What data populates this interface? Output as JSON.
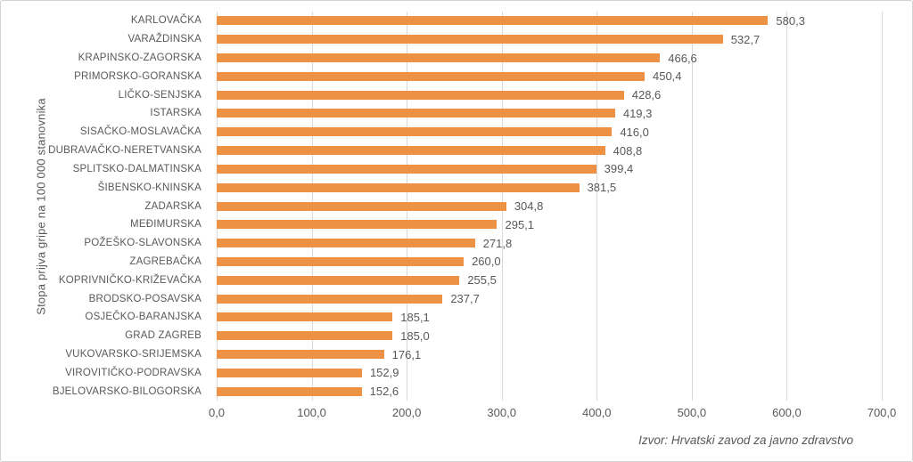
{
  "chart_data": {
    "type": "bar",
    "orientation": "horizontal",
    "title": "",
    "ylabel": "Stopa prijva gripe na 100 000 stanovnika",
    "xlabel": "",
    "categories": [
      "KARLOVAČKA",
      "VARAŽDINSKA",
      "KRAPINSKO-ZAGORSKA",
      "PRIMORSKO-GORANSKA",
      "LIČKO-SENJSKA",
      "ISTARSKA",
      "SISAČKO-MOSLAVAČKA",
      "DUBRAVAČKO-NERETVANSKA",
      "SPLITSKO-DALMATINSKA",
      "ŠIBENSKO-KNINSKA",
      "ZADARSKA",
      "MEĐIMURSKA",
      "POŽEŠKO-SLAVONSKA",
      "ZAGREBAČKA",
      "KOPRIVNIČKO-KRIŽEVAČKA",
      "BRODSKO-POSAVSKA",
      "OSJEČKO-BARANJSKA",
      "GRAD ZAGREB",
      "VUKOVARSKO-SRIJEMSKA",
      "VIROVITIČKO-PODRAVSKA",
      "BJELOVARSKO-BILOGORSKA"
    ],
    "values": [
      580.3,
      532.7,
      466.6,
      450.4,
      428.6,
      419.3,
      416.0,
      408.8,
      399.4,
      381.5,
      304.8,
      295.1,
      271.8,
      260.0,
      255.5,
      237.7,
      185.1,
      185.0,
      176.1,
      152.9,
      152.6
    ],
    "value_labels": [
      "580,3",
      "532,7",
      "466,6",
      "450,4",
      "428,6",
      "419,3",
      "416,0",
      "408,8",
      "399,4",
      "381,5",
      "304,8",
      "295,1",
      "271,8",
      "260,0",
      "255,5",
      "237,7",
      "185,1",
      "185,0",
      "176,1",
      "152,9",
      "152,6"
    ],
    "x_ticks": [
      "0,0",
      "100,0",
      "200,0",
      "300,0",
      "400,0",
      "500,0",
      "600,0",
      "700,0"
    ],
    "xlim": [
      0,
      700
    ],
    "grid": "vertical-major",
    "legend": "none",
    "source": "Izvor: Hrvatski zavod za javno zdravstvo",
    "colors": {
      "bar": "#ED9144",
      "gridline": "#D9D9D9",
      "text": "#595959"
    }
  }
}
